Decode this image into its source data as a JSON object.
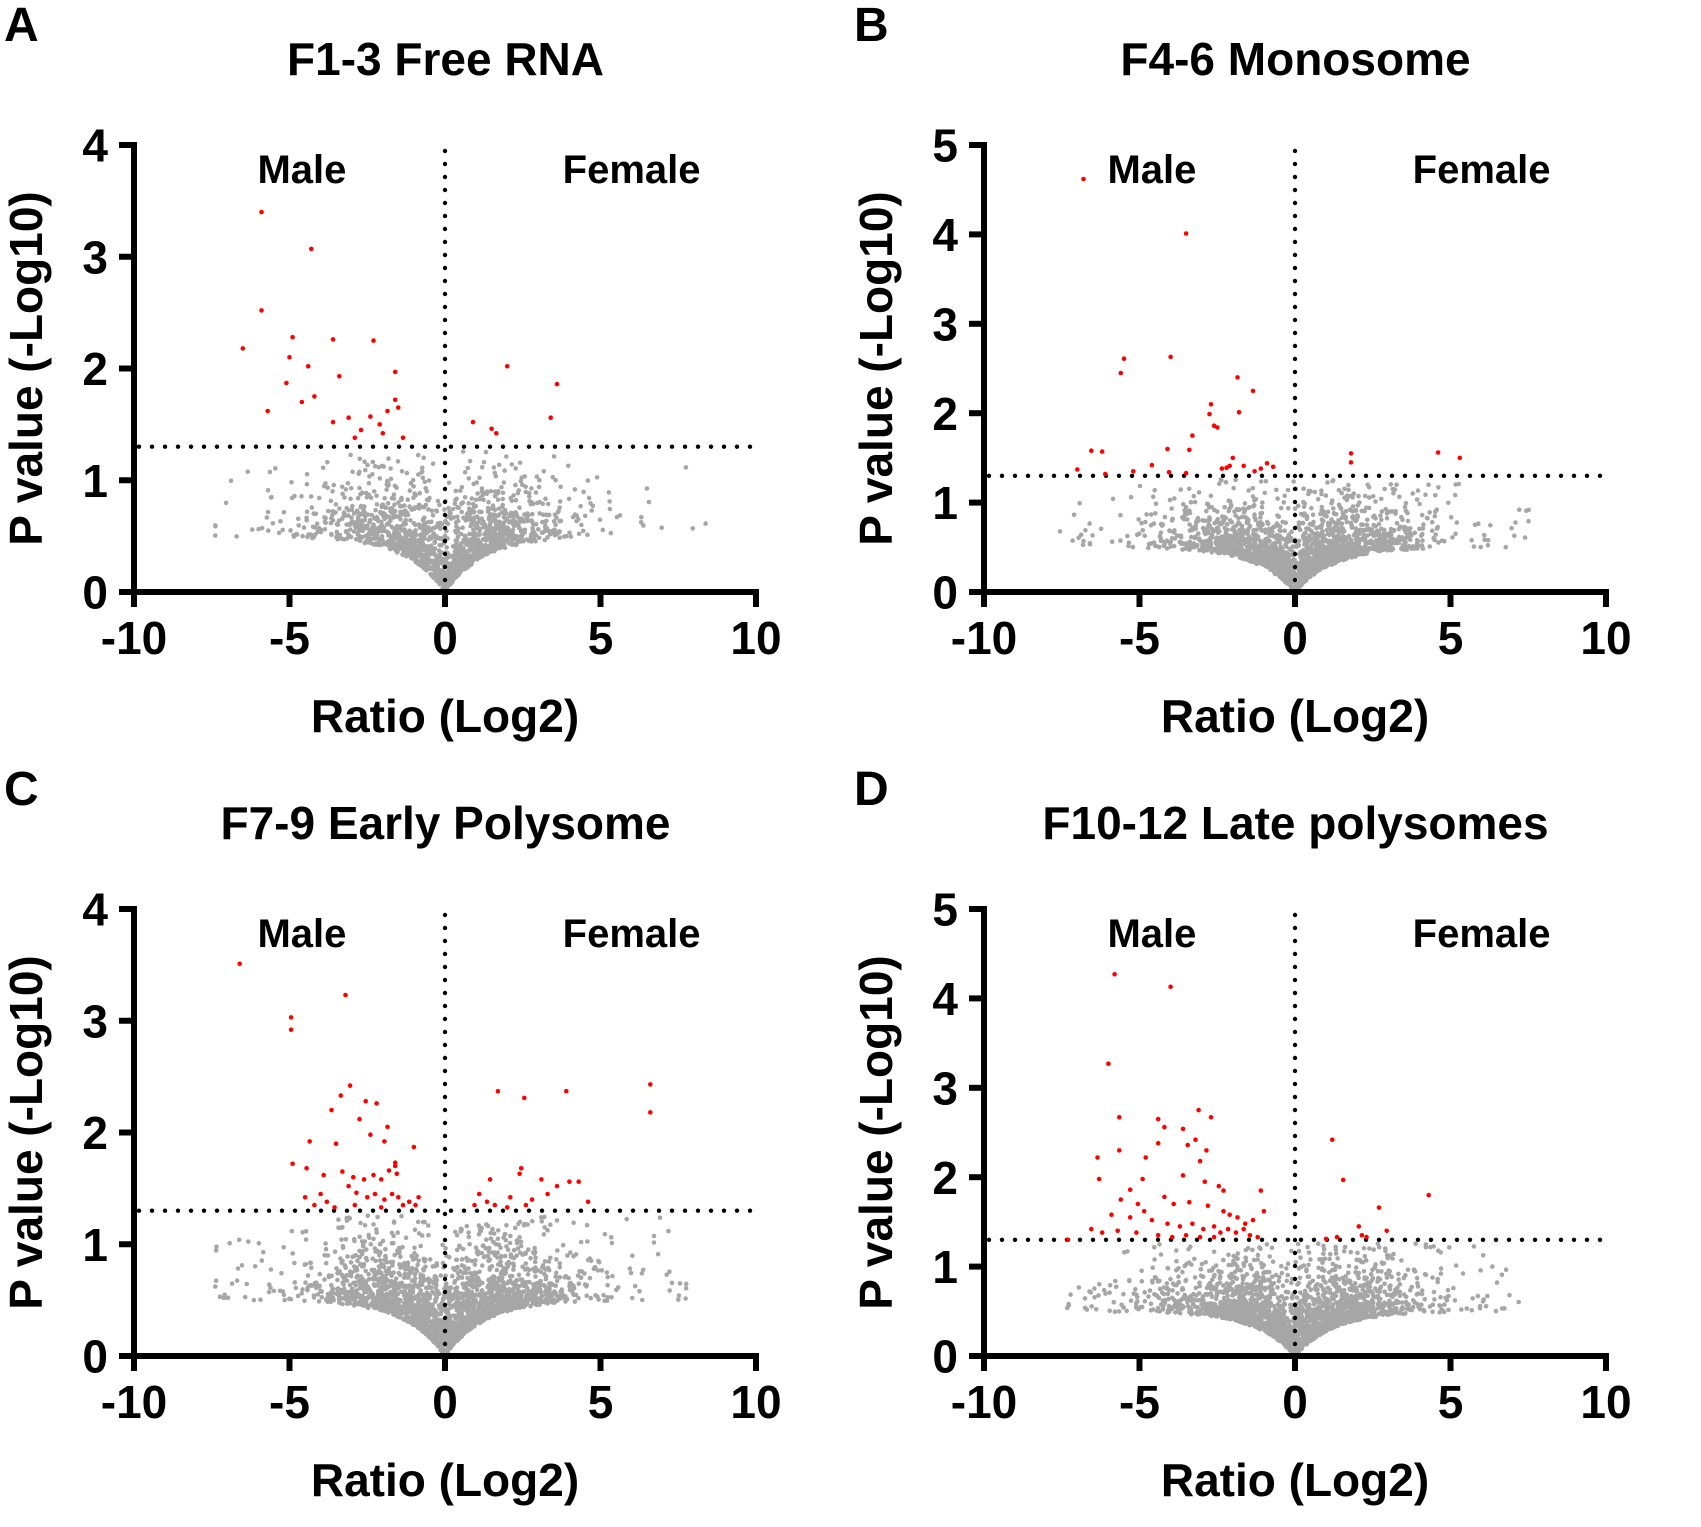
{
  "figure": {
    "background": "#FFFFFF",
    "colors": {
      "significant_point": "#FF0000",
      "nonsignificant_point": "#A6A6A6",
      "axis": "#000000",
      "reference_line": "#000000",
      "text": "#000000"
    }
  },
  "chart_data": [
    {
      "type": "scatter",
      "panel_label": "A",
      "title": "F1-3 Free RNA",
      "xlabel": "Ratio (Log2)",
      "ylabel": "P value (-Log10)",
      "left_group_label": "Male",
      "right_group_label": "Female",
      "xlim": [
        -10,
        10
      ],
      "ylim": [
        0,
        4
      ],
      "x_ticks": [
        -10,
        -5,
        0,
        5,
        10
      ],
      "y_ticks": [
        0,
        1,
        2,
        3,
        4
      ],
      "significance_threshold_y": 1.3,
      "vertical_reference_x": 0,
      "significant_points": [
        [
          -5.9,
          3.4
        ],
        [
          -4.3,
          3.07
        ],
        [
          -5.9,
          2.52
        ],
        [
          -6.5,
          2.18
        ],
        [
          -4.9,
          2.28
        ],
        [
          -3.6,
          2.26
        ],
        [
          -2.3,
          2.25
        ],
        [
          -5.0,
          2.1
        ],
        [
          -4.4,
          2.02
        ],
        [
          -3.4,
          1.93
        ],
        [
          -5.1,
          1.87
        ],
        [
          -4.2,
          1.75
        ],
        [
          -1.6,
          1.97
        ],
        [
          -5.7,
          1.62
        ],
        [
          -4.6,
          1.7
        ],
        [
          -3.6,
          1.52
        ],
        [
          -3.1,
          1.56
        ],
        [
          -2.7,
          1.45
        ],
        [
          -2.4,
          1.57
        ],
        [
          -2.1,
          1.5
        ],
        [
          -1.85,
          1.62
        ],
        [
          -1.6,
          1.72
        ],
        [
          -1.5,
          1.65
        ],
        [
          -2.0,
          1.42
        ],
        [
          -1.35,
          1.38
        ],
        [
          -2.9,
          1.38
        ],
        [
          2.0,
          2.02
        ],
        [
          3.6,
          1.86
        ],
        [
          3.4,
          1.56
        ],
        [
          0.9,
          1.52
        ],
        [
          1.5,
          1.46
        ],
        [
          1.65,
          1.42
        ]
      ],
      "background_cloud": {
        "count": 1600,
        "seed": 101,
        "x_sigma": 1.8,
        "tail_fraction": 0.12,
        "tail_scale": 2.1,
        "x_max": 8.8,
        "envelope_amplitude": 0.5,
        "envelope_rate": 0.8,
        "excess_mean": 0.24,
        "y_max": 1.26
      }
    },
    {
      "type": "scatter",
      "panel_label": "B",
      "title": "F4-6 Monosome",
      "xlabel": "Ratio (Log2)",
      "ylabel": "P value (-Log10)",
      "left_group_label": "Male",
      "right_group_label": "Female",
      "xlim": [
        -10,
        10
      ],
      "ylim": [
        0,
        5
      ],
      "x_ticks": [
        -10,
        -5,
        0,
        5,
        10
      ],
      "y_ticks": [
        0,
        1,
        2,
        3,
        4,
        5
      ],
      "significance_threshold_y": 1.3,
      "vertical_reference_x": 0,
      "significant_points": [
        [
          -6.8,
          4.62
        ],
        [
          -3.5,
          4.01
        ],
        [
          -5.5,
          2.61
        ],
        [
          -5.6,
          2.45
        ],
        [
          -4.0,
          2.63
        ],
        [
          -1.85,
          2.4
        ],
        [
          -1.35,
          2.25
        ],
        [
          -2.7,
          2.1
        ],
        [
          -2.75,
          1.99
        ],
        [
          -1.8,
          2.01
        ],
        [
          -2.6,
          1.86
        ],
        [
          -2.5,
          1.84
        ],
        [
          -3.3,
          1.75
        ],
        [
          -3.4,
          1.59
        ],
        [
          -4.1,
          1.6
        ],
        [
          -6.55,
          1.58
        ],
        [
          -6.2,
          1.57
        ],
        [
          -7.0,
          1.37
        ],
        [
          -6.1,
          1.32
        ],
        [
          -2.0,
          1.5
        ],
        [
          -1.65,
          1.41
        ],
        [
          -2.2,
          1.39
        ],
        [
          -2.35,
          1.38
        ],
        [
          -2.1,
          1.41
        ],
        [
          -0.9,
          1.44
        ],
        [
          -0.7,
          1.4
        ],
        [
          -4.05,
          1.34
        ],
        [
          -3.5,
          1.33
        ],
        [
          -4.6,
          1.42
        ],
        [
          -5.2,
          1.35
        ],
        [
          -1.3,
          1.35
        ],
        [
          -1.1,
          1.38
        ],
        [
          1.8,
          1.55
        ],
        [
          1.8,
          1.45
        ],
        [
          4.6,
          1.56
        ],
        [
          5.3,
          1.5
        ]
      ],
      "background_cloud": {
        "count": 2000,
        "seed": 202,
        "x_sigma": 1.9,
        "tail_fraction": 0.12,
        "tail_scale": 2.0,
        "x_max": 7.6,
        "envelope_amplitude": 0.5,
        "envelope_rate": 0.8,
        "excess_mean": 0.24,
        "y_max": 1.26
      }
    },
    {
      "type": "scatter",
      "panel_label": "C",
      "title": "F7-9 Early Polysome",
      "xlabel": "Ratio (Log2)",
      "ylabel": "P value (-Log10)",
      "left_group_label": "Male",
      "right_group_label": "Female",
      "xlim": [
        -10,
        10
      ],
      "ylim": [
        0,
        4
      ],
      "x_ticks": [
        -10,
        -5,
        0,
        5,
        10
      ],
      "y_ticks": [
        0,
        1,
        2,
        3,
        4
      ],
      "significance_threshold_y": 1.3,
      "vertical_reference_x": 0,
      "significant_points": [
        [
          -6.6,
          3.51
        ],
        [
          -3.2,
          3.23
        ],
        [
          -4.95,
          3.03
        ],
        [
          -4.95,
          2.92
        ],
        [
          -3.05,
          2.42
        ],
        [
          -3.35,
          2.33
        ],
        [
          -2.55,
          2.28
        ],
        [
          -3.65,
          2.2
        ],
        [
          -2.75,
          2.12
        ],
        [
          -2.2,
          2.26
        ],
        [
          -1.85,
          2.05
        ],
        [
          -2.4,
          1.98
        ],
        [
          -4.35,
          1.92
        ],
        [
          -3.5,
          1.9
        ],
        [
          -1.95,
          1.92
        ],
        [
          -4.9,
          1.72
        ],
        [
          -4.45,
          1.68
        ],
        [
          -3.9,
          1.62
        ],
        [
          -3.3,
          1.65
        ],
        [
          -2.95,
          1.6
        ],
        [
          -2.6,
          1.58
        ],
        [
          -2.3,
          1.62
        ],
        [
          -2.05,
          1.58
        ],
        [
          -1.8,
          1.66
        ],
        [
          -1.6,
          1.73
        ],
        [
          -1.6,
          1.7
        ],
        [
          -1.55,
          1.63
        ],
        [
          -1.0,
          1.87
        ],
        [
          -3.1,
          1.52
        ],
        [
          -2.85,
          1.46
        ],
        [
          -2.5,
          1.42
        ],
        [
          -2.25,
          1.45
        ],
        [
          -1.95,
          1.4
        ],
        [
          -1.7,
          1.45
        ],
        [
          -1.5,
          1.42
        ],
        [
          -1.35,
          1.35
        ],
        [
          -3.8,
          1.38
        ],
        [
          -4.2,
          1.35
        ],
        [
          -4.5,
          1.42
        ],
        [
          -1.15,
          1.38
        ],
        [
          -0.95,
          1.35
        ],
        [
          -2.05,
          1.33
        ],
        [
          -2.9,
          1.35
        ],
        [
          -3.55,
          1.33
        ],
        [
          -4.0,
          1.45
        ],
        [
          -0.85,
          1.42
        ],
        [
          1.7,
          2.37
        ],
        [
          2.55,
          2.31
        ],
        [
          3.9,
          2.37
        ],
        [
          6.6,
          2.43
        ],
        [
          6.6,
          2.18
        ],
        [
          1.45,
          1.58
        ],
        [
          2.45,
          1.68
        ],
        [
          2.4,
          1.63
        ],
        [
          3.1,
          1.58
        ],
        [
          4.0,
          1.56
        ],
        [
          4.3,
          1.56
        ],
        [
          1.1,
          1.45
        ],
        [
          1.35,
          1.38
        ],
        [
          2.1,
          1.42
        ],
        [
          2.8,
          1.4
        ],
        [
          3.3,
          1.45
        ],
        [
          3.6,
          1.52
        ],
        [
          0.95,
          1.35
        ],
        [
          2.0,
          1.33
        ],
        [
          2.6,
          1.35
        ],
        [
          4.6,
          1.38
        ],
        [
          1.6,
          1.35
        ]
      ],
      "background_cloud": {
        "count": 2300,
        "seed": 303,
        "x_sigma": 1.9,
        "tail_fraction": 0.12,
        "tail_scale": 2.0,
        "x_max": 7.9,
        "envelope_amplitude": 0.5,
        "envelope_rate": 0.8,
        "excess_mean": 0.24,
        "y_max": 1.26
      }
    },
    {
      "type": "scatter",
      "panel_label": "D",
      "title": "F10-12 Late polysomes",
      "xlabel": "Ratio (Log2)",
      "ylabel": "P value (-Log10)",
      "left_group_label": "Male",
      "right_group_label": "Female",
      "xlim": [
        -10,
        10
      ],
      "ylim": [
        0,
        5
      ],
      "x_ticks": [
        -10,
        -5,
        0,
        5,
        10
      ],
      "y_ticks": [
        0,
        1,
        2,
        3,
        4,
        5
      ],
      "significance_threshold_y": 1.3,
      "vertical_reference_x": 0,
      "significant_points": [
        [
          -5.8,
          4.27
        ],
        [
          -4.0,
          4.13
        ],
        [
          -6.0,
          3.27
        ],
        [
          -5.65,
          2.67
        ],
        [
          -4.4,
          2.65
        ],
        [
          -4.2,
          2.56
        ],
        [
          -3.6,
          2.54
        ],
        [
          -3.1,
          2.75
        ],
        [
          -2.7,
          2.67
        ],
        [
          -4.4,
          2.38
        ],
        [
          -3.45,
          2.36
        ],
        [
          -5.65,
          2.3
        ],
        [
          -6.35,
          2.22
        ],
        [
          -4.8,
          2.22
        ],
        [
          -3.2,
          2.42
        ],
        [
          -2.85,
          2.3
        ],
        [
          -3.05,
          2.18
        ],
        [
          -6.3,
          1.98
        ],
        [
          -4.9,
          1.98
        ],
        [
          -3.6,
          2.02
        ],
        [
          -2.9,
          1.95
        ],
        [
          -2.45,
          1.9
        ],
        [
          -2.3,
          1.85
        ],
        [
          -1.1,
          1.85
        ],
        [
          -5.3,
          1.86
        ],
        [
          -5.6,
          1.75
        ],
        [
          -4.2,
          1.78
        ],
        [
          -3.9,
          1.7
        ],
        [
          -3.4,
          1.72
        ],
        [
          -2.8,
          1.68
        ],
        [
          -2.3,
          1.62
        ],
        [
          -2.1,
          1.58
        ],
        [
          -1.85,
          1.55
        ],
        [
          -5.9,
          1.58
        ],
        [
          -5.3,
          1.55
        ],
        [
          -4.6,
          1.52
        ],
        [
          -4.1,
          1.48
        ],
        [
          -3.7,
          1.45
        ],
        [
          -3.3,
          1.48
        ],
        [
          -2.95,
          1.42
        ],
        [
          -2.6,
          1.45
        ],
        [
          -2.4,
          1.38
        ],
        [
          -2.15,
          1.42
        ],
        [
          -1.9,
          1.38
        ],
        [
          -1.65,
          1.42
        ],
        [
          -1.45,
          1.35
        ],
        [
          -6.55,
          1.42
        ],
        [
          -6.2,
          1.38
        ],
        [
          -5.7,
          1.4
        ],
        [
          -5.1,
          1.38
        ],
        [
          -4.4,
          1.35
        ],
        [
          -3.95,
          1.33
        ],
        [
          -3.5,
          1.35
        ],
        [
          -3.05,
          1.33
        ],
        [
          -1.2,
          1.33
        ],
        [
          -7.3,
          1.3
        ],
        [
          -1.0,
          1.62
        ],
        [
          -1.35,
          1.52
        ],
        [
          -1.6,
          1.48
        ],
        [
          -2.6,
          1.33
        ],
        [
          -4.85,
          1.62
        ],
        [
          -5.05,
          1.7
        ],
        [
          1.2,
          2.42
        ],
        [
          1.55,
          1.97
        ],
        [
          2.7,
          1.66
        ],
        [
          4.3,
          1.8
        ],
        [
          2.05,
          1.45
        ],
        [
          2.95,
          1.4
        ],
        [
          1.35,
          1.33
        ],
        [
          2.3,
          1.33
        ],
        [
          1.0,
          1.31
        ],
        [
          2.15,
          1.35
        ]
      ],
      "background_cloud": {
        "count": 2200,
        "seed": 404,
        "x_sigma": 2.0,
        "tail_fraction": 0.12,
        "tail_scale": 1.9,
        "x_max": 7.4,
        "envelope_amplitude": 0.5,
        "envelope_rate": 0.8,
        "excess_mean": 0.24,
        "y_max": 1.26
      }
    }
  ]
}
